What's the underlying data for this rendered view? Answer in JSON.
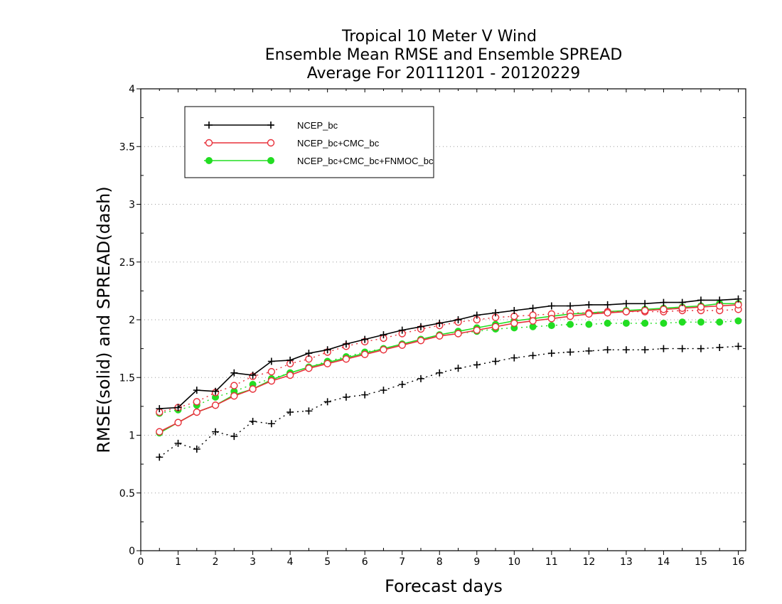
{
  "chart_data": {
    "type": "line",
    "title": [
      "Tropical 10 Meter V Wind",
      "Ensemble Mean RMSE and Ensemble SPREAD",
      "Average For 20111201 - 20120229"
    ],
    "xlabel": "Forecast days",
    "ylabel": "RMSE(solid) and SPREAD(dash)",
    "xlim": [
      0,
      16.2
    ],
    "ylim": [
      0,
      4
    ],
    "xticks": [
      "0",
      "1",
      "2",
      "3",
      "4",
      "5",
      "6",
      "7",
      "8",
      "9",
      "10",
      "11",
      "12",
      "13",
      "14",
      "15",
      "16"
    ],
    "yticks": [
      "0",
      "0.5",
      "1",
      "1.5",
      "2",
      "2.5",
      "3",
      "3.5",
      "4"
    ],
    "grid": "horizontal dotted",
    "legend_position": "top-left",
    "x": [
      0.5,
      1,
      1.5,
      2,
      2.5,
      3,
      3.5,
      4,
      4.5,
      5,
      5.5,
      6,
      6.5,
      7,
      7.5,
      8,
      8.5,
      9,
      9.5,
      10,
      10.5,
      11,
      11.5,
      12,
      12.5,
      13,
      13.5,
      14,
      14.5,
      15,
      15.5,
      16
    ],
    "series": [
      {
        "name": "NCEP_bc",
        "color": "#000000",
        "marker": "plus",
        "rmse": [
          1.23,
          1.24,
          1.39,
          1.38,
          1.54,
          1.52,
          1.64,
          1.65,
          1.71,
          1.74,
          1.79,
          1.83,
          1.87,
          1.91,
          1.94,
          1.97,
          2.0,
          2.04,
          2.06,
          2.08,
          2.1,
          2.12,
          2.12,
          2.13,
          2.13,
          2.14,
          2.14,
          2.15,
          2.15,
          2.17,
          2.17,
          2.18
        ],
        "spread": [
          0.81,
          0.93,
          0.88,
          1.03,
          0.99,
          1.12,
          1.1,
          1.2,
          1.21,
          1.29,
          1.33,
          1.35,
          1.39,
          1.44,
          1.49,
          1.54,
          1.58,
          1.61,
          1.64,
          1.67,
          1.69,
          1.71,
          1.72,
          1.73,
          1.74,
          1.74,
          1.74,
          1.75,
          1.75,
          1.75,
          1.76,
          1.77
        ]
      },
      {
        "name": "NCEP_bc+CMC_bc",
        "color": "#e8303a",
        "marker": "open-circle",
        "rmse": [
          1.03,
          1.11,
          1.2,
          1.26,
          1.34,
          1.4,
          1.47,
          1.52,
          1.58,
          1.62,
          1.66,
          1.7,
          1.74,
          1.78,
          1.82,
          1.86,
          1.88,
          1.91,
          1.94,
          1.97,
          1.99,
          2.01,
          2.03,
          2.05,
          2.06,
          2.07,
          2.08,
          2.09,
          2.1,
          2.11,
          2.12,
          2.13
        ],
        "spread": [
          1.2,
          1.24,
          1.29,
          1.37,
          1.43,
          1.51,
          1.55,
          1.62,
          1.66,
          1.72,
          1.77,
          1.81,
          1.84,
          1.88,
          1.92,
          1.95,
          1.98,
          2.0,
          2.02,
          2.03,
          2.04,
          2.05,
          2.06,
          2.06,
          2.07,
          2.07,
          2.07,
          2.07,
          2.08,
          2.08,
          2.08,
          2.09
        ]
      },
      {
        "name": "NCEP_bc+CMC_bc+FNMOC_bc",
        "color": "#22dd22",
        "marker": "filled-circle",
        "rmse": [
          1.02,
          1.11,
          1.2,
          1.26,
          1.35,
          1.4,
          1.48,
          1.54,
          1.59,
          1.63,
          1.67,
          1.71,
          1.75,
          1.79,
          1.83,
          1.87,
          1.9,
          1.93,
          1.96,
          1.99,
          2.01,
          2.03,
          2.05,
          2.06,
          2.07,
          2.08,
          2.09,
          2.1,
          2.11,
          2.12,
          2.14,
          2.14
        ],
        "spread": [
          1.19,
          1.22,
          1.26,
          1.33,
          1.38,
          1.44,
          1.49,
          1.54,
          1.59,
          1.64,
          1.68,
          1.72,
          1.75,
          1.79,
          1.83,
          1.86,
          1.88,
          1.9,
          1.92,
          1.93,
          1.94,
          1.95,
          1.96,
          1.96,
          1.97,
          1.97,
          1.97,
          1.97,
          1.98,
          1.98,
          1.98,
          1.99
        ]
      }
    ]
  }
}
